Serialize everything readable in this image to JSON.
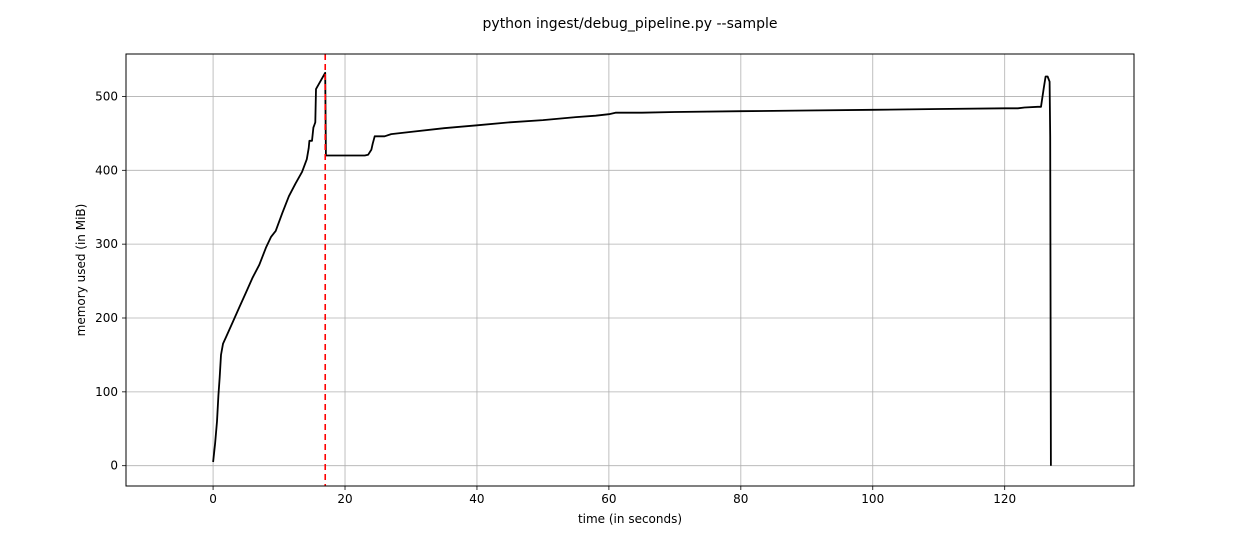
{
  "chart_data": {
    "type": "line",
    "title": "python ingest/debug_pipeline.py --sample",
    "xlabel": "time (in seconds)",
    "ylabel": "memory used (in MiB)",
    "xlim": [
      -13.2,
      139.6
    ],
    "ylim": [
      -27.5,
      557.5
    ],
    "xticks": [
      0,
      20,
      40,
      60,
      80,
      100,
      120
    ],
    "yticks": [
      0,
      100,
      200,
      300,
      400,
      500
    ],
    "grid": true,
    "line_color": "#000000",
    "marker_color": "#ff0000",
    "vline_x": 17.0,
    "series": [
      {
        "x": [
          0.0,
          0.3,
          0.6,
          0.8,
          1.0,
          1.2,
          1.5,
          2.0,
          3.0,
          4.0,
          5.0,
          6.0,
          7.0,
          8.0,
          8.8,
          9.5,
          10.5,
          11.5,
          12.5,
          13.5,
          14.2,
          14.5,
          14.6,
          15.0,
          15.2,
          15.3,
          15.5,
          15.6,
          17.0,
          17.1,
          20.0,
          23.0,
          23.5,
          24.0,
          24.2,
          24.5,
          25.0,
          26.0,
          27.0,
          30.0,
          35.0,
          40.0,
          45.0,
          50.0,
          55.0,
          58.0,
          60.0,
          61.0,
          65.0,
          70.0,
          80.0,
          90.0,
          100.0,
          110.0,
          120.0,
          122.0,
          123.0,
          125.0,
          125.5,
          125.9,
          126.2,
          126.5,
          126.8,
          126.9,
          127.0
        ],
        "y": [
          5,
          30,
          60,
          95,
          120,
          150,
          165,
          175,
          195,
          215,
          235,
          255,
          272,
          295,
          310,
          318,
          342,
          365,
          382,
          398,
          415,
          430,
          440,
          440,
          458,
          460,
          465,
          510,
          532,
          420,
          420,
          420,
          421,
          428,
          436,
          446,
          446,
          446,
          449,
          452,
          457,
          461,
          465,
          468,
          472,
          474,
          476,
          478,
          478,
          479,
          480,
          481,
          482,
          483,
          484,
          484,
          485,
          486,
          486,
          510,
          527,
          527,
          520,
          445,
          0
        ]
      }
    ]
  }
}
